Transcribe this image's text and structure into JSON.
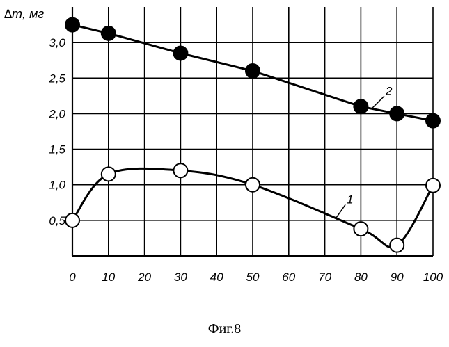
{
  "chart_data": {
    "type": "line",
    "ylabel": "∆m, мг",
    "xlabel": "",
    "xlim": [
      0,
      100
    ],
    "ylim": [
      0,
      3.5
    ],
    "x_ticks": [
      "0",
      "10",
      "20",
      "30",
      "40",
      "50",
      "60",
      "70",
      "80",
      "90",
      "100"
    ],
    "y_ticks": [
      "0,5",
      "1,0",
      "1,5",
      "2,0",
      "2,5",
      "3,0"
    ],
    "grid": true,
    "series": [
      {
        "name": "1",
        "marker": "open-circle",
        "smooth": true,
        "points": [
          {
            "x": 0,
            "y": 0.5
          },
          {
            "x": 10,
            "y": 1.15
          },
          {
            "x": 30,
            "y": 1.2
          },
          {
            "x": 50,
            "y": 1.0
          },
          {
            "x": 80,
            "y": 0.38
          },
          {
            "x": 90,
            "y": 0.15
          },
          {
            "x": 100,
            "y": 0.99
          }
        ]
      },
      {
        "name": "2",
        "marker": "filled-circle",
        "smooth": false,
        "points": [
          {
            "x": 0,
            "y": 3.25
          },
          {
            "x": 10,
            "y": 3.13
          },
          {
            "x": 30,
            "y": 2.85
          },
          {
            "x": 50,
            "y": 2.6
          },
          {
            "x": 80,
            "y": 2.1
          },
          {
            "x": 90,
            "y": 2.0
          },
          {
            "x": 100,
            "y": 1.9
          }
        ]
      }
    ],
    "colors": {
      "line": "#000000",
      "grid": "#000000",
      "open_marker_fill": "#ffffff",
      "filled_marker_fill": "#000000"
    }
  },
  "caption": "Фиг.8"
}
